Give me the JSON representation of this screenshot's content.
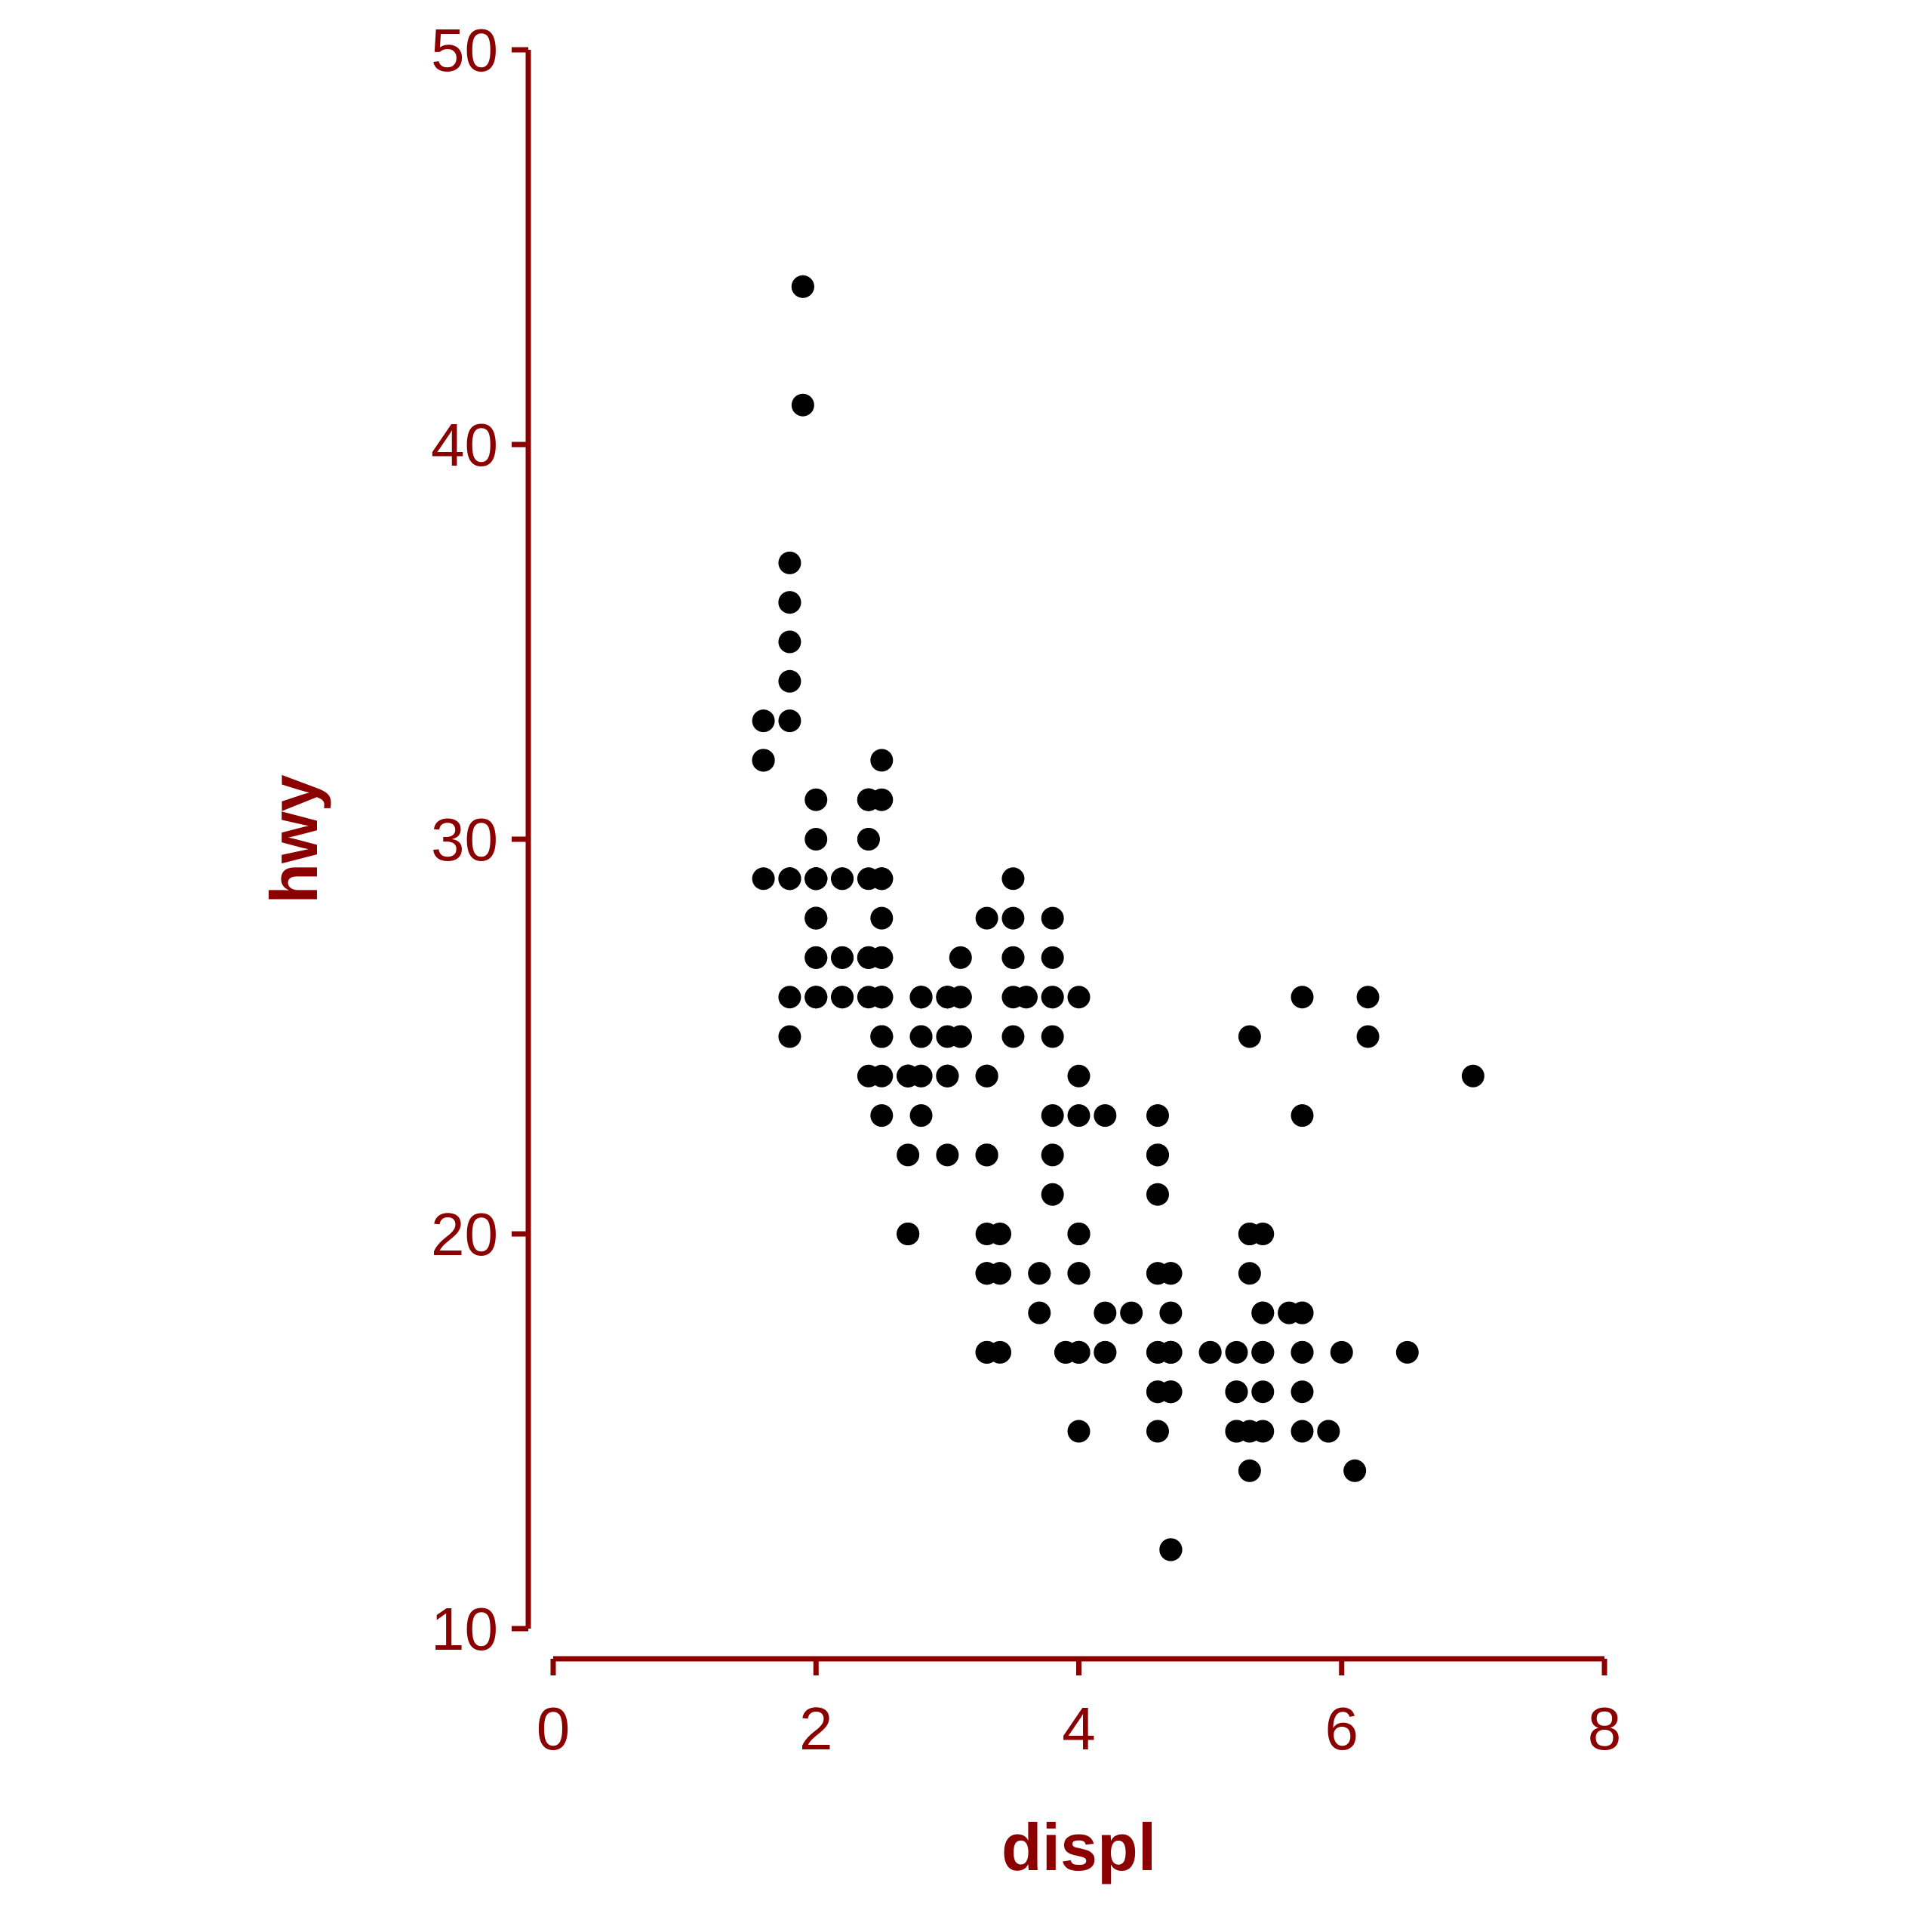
{
  "chart_data": {
    "type": "scatter",
    "xlabel": "displ",
    "ylabel": "hwy",
    "xlim": [
      0,
      8
    ],
    "ylim": [
      10,
      50
    ],
    "x_ticks": [
      0,
      2,
      4,
      6,
      8
    ],
    "y_ticks": [
      10,
      20,
      30,
      40,
      50
    ],
    "x_tick_labels": [
      "0",
      "2",
      "4",
      "6",
      "8"
    ],
    "y_tick_labels": [
      "10",
      "20",
      "30",
      "40",
      "50"
    ],
    "grid": false,
    "colors": {
      "axis": "#8b0000",
      "points": "#000000"
    },
    "points": [
      [
        1.8,
        29
      ],
      [
        1.8,
        29
      ],
      [
        2.0,
        31
      ],
      [
        2.0,
        30
      ],
      [
        2.8,
        26
      ],
      [
        2.8,
        26
      ],
      [
        3.1,
        27
      ],
      [
        1.8,
        26
      ],
      [
        1.8,
        25
      ],
      [
        2.0,
        28
      ],
      [
        2.0,
        27
      ],
      [
        2.8,
        25
      ],
      [
        2.8,
        25
      ],
      [
        3.1,
        25
      ],
      [
        3.1,
        25
      ],
      [
        2.8,
        24
      ],
      [
        3.1,
        25
      ],
      [
        4.2,
        23
      ],
      [
        5.3,
        20
      ],
      [
        5.3,
        15
      ],
      [
        5.3,
        20
      ],
      [
        5.7,
        17
      ],
      [
        6.0,
        17
      ],
      [
        5.7,
        26
      ],
      [
        5.7,
        23
      ],
      [
        6.2,
        26
      ],
      [
        6.2,
        25
      ],
      [
        7.0,
        24
      ],
      [
        5.3,
        19
      ],
      [
        5.3,
        14
      ],
      [
        5.7,
        15
      ],
      [
        6.5,
        17
      ],
      [
        2.4,
        27
      ],
      [
        2.4,
        30
      ],
      [
        3.1,
        26
      ],
      [
        3.5,
        29
      ],
      [
        3.6,
        26
      ],
      [
        2.4,
        24
      ],
      [
        3.0,
        24
      ],
      [
        3.3,
        22
      ],
      [
        3.3,
        19
      ],
      [
        3.3,
        24
      ],
      [
        3.3,
        24
      ],
      [
        3.3,
        22
      ],
      [
        3.3,
        19
      ],
      [
        3.8,
        22
      ],
      [
        3.8,
        21
      ],
      [
        3.8,
        23
      ],
      [
        4.0,
        23
      ],
      [
        3.7,
        19
      ],
      [
        3.7,
        18
      ],
      [
        3.9,
        17
      ],
      [
        3.9,
        17
      ],
      [
        4.7,
        19
      ],
      [
        4.7,
        19
      ],
      [
        4.7,
        12
      ],
      [
        5.2,
        17
      ],
      [
        5.2,
        15
      ],
      [
        3.9,
        17
      ],
      [
        4.7,
        17
      ],
      [
        4.7,
        12
      ],
      [
        4.7,
        17
      ],
      [
        5.2,
        16
      ],
      [
        5.7,
        18
      ],
      [
        5.9,
        15
      ],
      [
        4.7,
        16
      ],
      [
        4.7,
        12
      ],
      [
        4.7,
        17
      ],
      [
        4.7,
        17
      ],
      [
        4.7,
        16
      ],
      [
        4.7,
        12
      ],
      [
        5.2,
        15
      ],
      [
        5.2,
        16
      ],
      [
        5.7,
        17
      ],
      [
        5.9,
        15
      ],
      [
        4.6,
        17
      ],
      [
        5.4,
        17
      ],
      [
        5.4,
        18
      ],
      [
        4.0,
        17
      ],
      [
        4.0,
        19
      ],
      [
        4.0,
        17
      ],
      [
        4.0,
        19
      ],
      [
        4.6,
        19
      ],
      [
        5.0,
        17
      ],
      [
        4.2,
        17
      ],
      [
        4.2,
        17
      ],
      [
        4.6,
        16
      ],
      [
        4.6,
        16
      ],
      [
        4.6,
        17
      ],
      [
        5.4,
        15
      ],
      [
        5.4,
        17
      ],
      [
        3.8,
        26
      ],
      [
        3.8,
        25
      ],
      [
        4.0,
        26
      ],
      [
        4.0,
        24
      ],
      [
        4.6,
        21
      ],
      [
        4.6,
        22
      ],
      [
        4.6,
        23
      ],
      [
        4.6,
        22
      ],
      [
        5.4,
        20
      ],
      [
        1.6,
        33
      ],
      [
        1.6,
        32
      ],
      [
        1.6,
        32
      ],
      [
        1.6,
        29
      ],
      [
        1.6,
        32
      ],
      [
        1.8,
        34
      ],
      [
        1.8,
        36
      ],
      [
        1.8,
        36
      ],
      [
        2.0,
        29
      ],
      [
        2.4,
        26
      ],
      [
        2.4,
        27
      ],
      [
        2.4,
        30
      ],
      [
        2.4,
        31
      ],
      [
        2.5,
        26
      ],
      [
        2.5,
        26
      ],
      [
        3.3,
        28
      ],
      [
        2.0,
        26
      ],
      [
        2.0,
        29
      ],
      [
        2.0,
        28
      ],
      [
        2.0,
        27
      ],
      [
        2.7,
        24
      ],
      [
        2.7,
        24
      ],
      [
        2.7,
        24
      ],
      [
        3.0,
        22
      ],
      [
        3.7,
        19
      ],
      [
        4.0,
        20
      ],
      [
        4.7,
        17
      ],
      [
        4.7,
        12
      ],
      [
        4.7,
        19
      ],
      [
        5.7,
        18
      ],
      [
        6.1,
        14
      ],
      [
        4.0,
        15
      ],
      [
        4.2,
        18
      ],
      [
        4.4,
        18
      ],
      [
        4.6,
        15
      ],
      [
        5.4,
        17
      ],
      [
        5.4,
        16
      ],
      [
        5.4,
        18
      ],
      [
        4.0,
        17
      ],
      [
        4.0,
        19
      ],
      [
        4.6,
        19
      ],
      [
        5.0,
        17
      ],
      [
        2.4,
        29
      ],
      [
        2.4,
        27
      ],
      [
        2.5,
        31
      ],
      [
        2.5,
        32
      ],
      [
        3.5,
        27
      ],
      [
        3.5,
        26
      ],
      [
        3.0,
        26
      ],
      [
        3.0,
        25
      ],
      [
        3.5,
        25
      ],
      [
        3.3,
        17
      ],
      [
        3.3,
        17
      ],
      [
        4.0,
        20
      ],
      [
        5.6,
        18
      ],
      [
        3.1,
        26
      ],
      [
        3.8,
        26
      ],
      [
        3.8,
        27
      ],
      [
        3.8,
        28
      ],
      [
        5.3,
        25
      ],
      [
        2.5,
        25
      ],
      [
        2.5,
        24
      ],
      [
        2.5,
        27
      ],
      [
        2.5,
        25
      ],
      [
        2.5,
        26
      ],
      [
        2.5,
        23
      ],
      [
        2.2,
        26
      ],
      [
        2.2,
        26
      ],
      [
        2.5,
        26
      ],
      [
        2.5,
        26
      ],
      [
        2.5,
        25
      ],
      [
        2.5,
        27
      ],
      [
        2.5,
        25
      ],
      [
        2.7,
        20
      ],
      [
        2.7,
        20
      ],
      [
        3.4,
        19
      ],
      [
        3.4,
        17
      ],
      [
        4.0,
        20
      ],
      [
        4.7,
        17
      ],
      [
        2.2,
        29
      ],
      [
        2.2,
        27
      ],
      [
        2.4,
        31
      ],
      [
        2.4,
        31
      ],
      [
        3.0,
        26
      ],
      [
        3.0,
        26
      ],
      [
        3.5,
        28
      ],
      [
        2.2,
        27
      ],
      [
        2.2,
        29
      ],
      [
        2.4,
        31
      ],
      [
        2.4,
        31
      ],
      [
        3.0,
        26
      ],
      [
        3.0,
        26
      ],
      [
        3.5,
        27
      ],
      [
        3.0,
        24
      ],
      [
        3.0,
        24
      ],
      [
        3.3,
        24
      ],
      [
        3.3,
        22
      ],
      [
        3.3,
        19
      ],
      [
        3.3,
        20
      ],
      [
        3.3,
        17
      ],
      [
        4.0,
        20
      ],
      [
        4.0,
        17
      ],
      [
        4.7,
        18
      ],
      [
        4.7,
        16
      ],
      [
        4.7,
        17
      ],
      [
        5.7,
        16
      ],
      [
        2.7,
        24
      ],
      [
        2.7,
        24
      ],
      [
        2.7,
        24
      ],
      [
        2.7,
        22
      ],
      [
        2.7,
        20
      ],
      [
        3.4,
        20
      ],
      [
        3.4,
        19
      ],
      [
        4.0,
        17
      ],
      [
        4.0,
        17
      ],
      [
        2.0,
        29
      ],
      [
        2.0,
        29
      ],
      [
        2.0,
        28
      ],
      [
        2.0,
        29
      ],
      [
        2.8,
        26
      ],
      [
        1.9,
        44
      ],
      [
        2.0,
        29
      ],
      [
        2.0,
        26
      ],
      [
        2.0,
        29
      ],
      [
        2.0,
        29
      ],
      [
        2.5,
        29
      ],
      [
        2.5,
        29
      ],
      [
        2.8,
        23
      ],
      [
        2.8,
        24
      ],
      [
        1.9,
        44
      ],
      [
        1.9,
        41
      ],
      [
        2.0,
        29
      ],
      [
        2.0,
        26
      ],
      [
        2.5,
        28
      ],
      [
        2.5,
        29
      ],
      [
        1.8,
        29
      ],
      [
        1.8,
        29
      ],
      [
        2.0,
        28
      ],
      [
        2.0,
        29
      ],
      [
        2.8,
        26
      ],
      [
        2.8,
        26
      ],
      [
        3.6,
        26
      ],
      [
        1.8,
        37
      ],
      [
        1.8,
        35
      ],
      [
        1.8,
        33
      ]
    ]
  }
}
